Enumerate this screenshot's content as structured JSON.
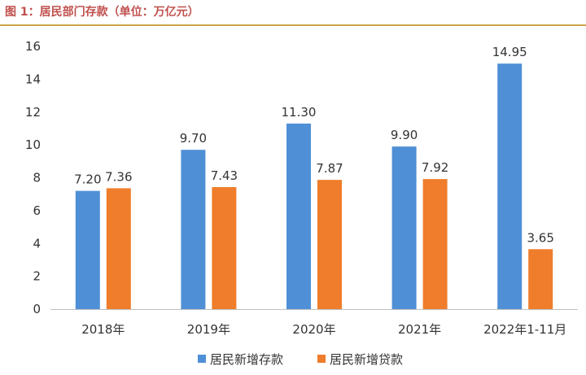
{
  "figure_title": "图 1：居民部门存款（单位：万亿元）",
  "colors": {
    "deposits": "#4f8fd6",
    "loans": "#ef7d2b",
    "accent": "#c0504d",
    "rule": "#c9a44a",
    "axis": "#bfbfbf"
  },
  "chart_data": {
    "type": "bar",
    "title": "",
    "categories": [
      "2018年",
      "2019年",
      "2020年",
      "2021年",
      "2022年1-11月"
    ],
    "series": [
      {
        "name": "居民新增存款",
        "values": [
          7.2,
          9.7,
          11.3,
          9.9,
          14.95
        ],
        "labels": [
          "7.20",
          "9.70",
          "11.30",
          "9.90",
          "14.95"
        ]
      },
      {
        "name": "居民新增贷款",
        "values": [
          7.36,
          7.43,
          7.87,
          7.92,
          3.65
        ],
        "labels": [
          "7.36",
          "7.43",
          "7.87",
          "7.92",
          "3.65"
        ]
      }
    ],
    "ylim": [
      0,
      16
    ],
    "yticks": [
      0,
      2,
      4,
      6,
      8,
      10,
      12,
      14,
      16
    ],
    "xlabel": "",
    "ylabel": "",
    "grid": false,
    "legend_position": "bottom-center"
  }
}
